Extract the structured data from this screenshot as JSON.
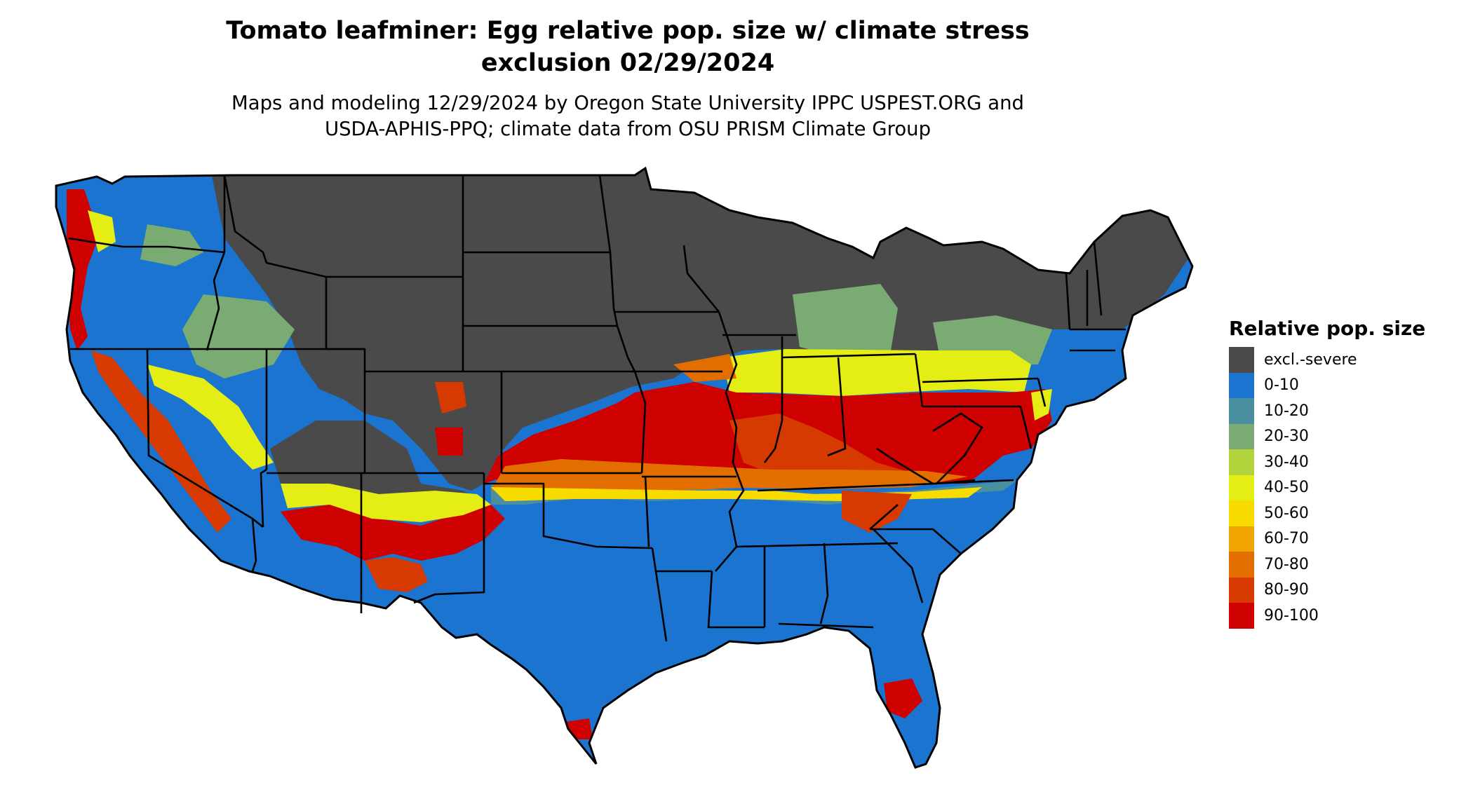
{
  "header": {
    "title_line1": "Tomato leafminer: Egg relative pop. size w/ climate stress",
    "title_line2": "exclusion 02/29/2024",
    "subtitle_line1": "Maps and modeling 12/29/2024 by Oregon State University IPPC USPEST.ORG and",
    "subtitle_line2": "USDA-APHIS-PPQ; climate data from OSU PRISM Climate Group"
  },
  "legend": {
    "title": "Relative pop. size",
    "items": [
      {
        "label": "excl.-severe",
        "color": "#4a4a4a"
      },
      {
        "label": "0-10",
        "color": "#1b74cf"
      },
      {
        "label": "10-20",
        "color": "#4a8fa0"
      },
      {
        "label": "20-30",
        "color": "#7aab73"
      },
      {
        "label": "30-40",
        "color": "#b2d33c"
      },
      {
        "label": "40-50",
        "color": "#e4ee14"
      },
      {
        "label": "50-60",
        "color": "#f8dc00"
      },
      {
        "label": "60-70",
        "color": "#efa400"
      },
      {
        "label": "70-80",
        "color": "#e36e00"
      },
      {
        "label": "80-90",
        "color": "#d63a00"
      },
      {
        "label": "90-100",
        "color": "#cf0000"
      }
    ]
  },
  "map": {
    "background_color": "#ffffff",
    "border_color": "#000000"
  }
}
